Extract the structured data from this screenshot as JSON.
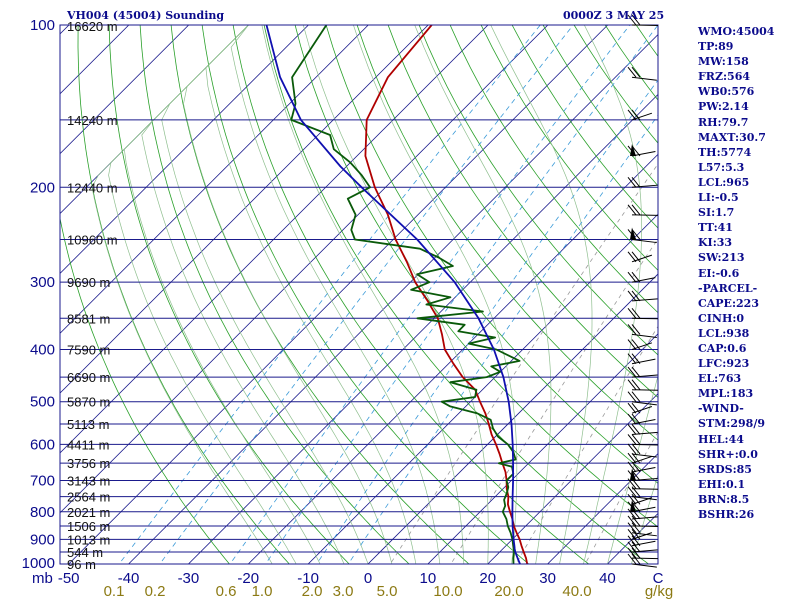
{
  "header": {
    "station": "VH004 (45004) Sounding",
    "time": "0000Z  3 MAY 25"
  },
  "indices": [
    "WMO:45004",
    "TP:89",
    "MW:158",
    "FRZ:564",
    "WB0:576",
    "PW:2.14",
    "RH:79.7",
    "MAXT:30.7",
    "TH:5774",
    "L57:5.3",
    "LCL:965",
    "LI:-0.5",
    "SI:1.7",
    "TT:41",
    "KI:33",
    "SW:213",
    "EI:-0.6",
    "-PARCEL-",
    "CAPE:223",
    "CINH:0",
    "LCL:938",
    "CAP:0.6",
    "LFC:923",
    "EL:763",
    "MPL:183",
    "-WIND-",
    "STM:298/9",
    "HEL:44",
    "SHR+:0.0",
    "SRDS:85",
    "EHI:0.1",
    "BRN:8.5",
    "BSHR:26"
  ],
  "colors": {
    "isobar": "#1a1a8c",
    "isotherm": "#1a1a8c",
    "dry_adiabat": "#2aa02a",
    "moist_adiabat": "#8fbf8f",
    "mixing_ratio": "#9a9a9a",
    "mixing_dash_blue": "#3a9ad8",
    "temperature": "#b00000",
    "dewpoint": "#0a5a0a",
    "parcel": "#1010b0",
    "label_blue": "#0b0b8c",
    "label_olive": "#8c7a14",
    "wind": "#000000"
  },
  "chart_data": {
    "type": "line",
    "title": "VH004 (45004) Sounding",
    "subtitle": "0000Z  3 MAY 25",
    "xlabel": "",
    "ylabel": "mb",
    "log_pressure_axis": true,
    "skewed_isotherms": true,
    "grid": true,
    "pressure_ticks": [
      "100",
      "200",
      "300",
      "400",
      "500",
      "600",
      "700",
      "800",
      "900",
      "1000"
    ],
    "pressure_tick_values": [
      100,
      200,
      300,
      400,
      500,
      600,
      700,
      800,
      900,
      1000
    ],
    "temperature_ticks": [
      "-50",
      "-40",
      "-30",
      "-20",
      "-10",
      "0",
      "10",
      "20",
      "30",
      "40",
      "C"
    ],
    "temperature_tick_values": [
      -50,
      -40,
      -30,
      -20,
      -10,
      0,
      10,
      20,
      30,
      40
    ],
    "mixing_ratio_ticks": [
      "0.1",
      "0.2",
      "0.6",
      "1.0",
      "2.0",
      "3.0",
      "5.0",
      "10.0",
      "20.0",
      "40.0",
      "g/kg"
    ],
    "mixing_ratio_values": [
      0.1,
      0.2,
      0.6,
      1.0,
      2.0,
      3.0,
      5.0,
      10.0,
      20.0,
      40.0
    ],
    "height_labels": [
      {
        "p": 100,
        "label": "16620 m"
      },
      {
        "p": 150,
        "label": "14240 m"
      },
      {
        "p": 200,
        "label": "12440 m"
      },
      {
        "p": 250,
        "label": "10960 m"
      },
      {
        "p": 300,
        "label": "9690 m"
      },
      {
        "p": 350,
        "label": "8581 m"
      },
      {
        "p": 400,
        "label": "7590 m"
      },
      {
        "p": 450,
        "label": "6690 m"
      },
      {
        "p": 500,
        "label": "5870 m"
      },
      {
        "p": 550,
        "label": "5113 m"
      },
      {
        "p": 600,
        "label": "4411 m"
      },
      {
        "p": 650,
        "label": "3756 m"
      },
      {
        "p": 700,
        "label": "3143 m"
      },
      {
        "p": 750,
        "label": "2564 m"
      },
      {
        "p": 800,
        "label": "2021 m"
      },
      {
        "p": 850,
        "label": "1506 m"
      },
      {
        "p": 900,
        "label": "1013 m"
      },
      {
        "p": 950,
        "label": "544 m"
      },
      {
        "p": 1000,
        "label": "96 m"
      }
    ],
    "series": [
      {
        "name": "temperature",
        "p": [
          1008,
          1000,
          975,
          950,
          925,
          900,
          875,
          850,
          825,
          800,
          775,
          750,
          725,
          700,
          675,
          650,
          625,
          600,
          575,
          550,
          525,
          500,
          475,
          450,
          425,
          400,
          375,
          350,
          325,
          300,
          275,
          250,
          225,
          200,
          175,
          150,
          125,
          100
        ],
        "t": [
          27.6,
          26.6,
          25.4,
          24.0,
          22.6,
          21.2,
          19.6,
          18.0,
          16.6,
          15.0,
          13.4,
          12.2,
          10.6,
          9.2,
          7.6,
          5.6,
          3.6,
          1.4,
          -1.0,
          -3.2,
          -5.6,
          -8.4,
          -11.2,
          -15.4,
          -19.2,
          -23.0,
          -26.0,
          -29.4,
          -34.0,
          -39.2,
          -44.0,
          -49.6,
          -55.0,
          -61.8,
          -68.6,
          -74.4,
          -78.0,
          -79.4
        ]
      },
      {
        "name": "dewpoint",
        "p": [
          1008,
          1000,
          975,
          950,
          925,
          900,
          875,
          850,
          825,
          800,
          780,
          760,
          740,
          720,
          700,
          680,
          660,
          650,
          640,
          620,
          600,
          580,
          560,
          540,
          525,
          510,
          500,
          490,
          475,
          460,
          450,
          440,
          430,
          420,
          400,
          390,
          380,
          370,
          360,
          350,
          340,
          330,
          320,
          310,
          300,
          290,
          280,
          270,
          260,
          250,
          240,
          225,
          210,
          200,
          190,
          180,
          170,
          160,
          150,
          140,
          125,
          100
        ],
        "t": [
          25.0,
          24.3,
          23.3,
          22.4,
          21.2,
          20.0,
          18.6,
          17.0,
          15.6,
          13.8,
          13.2,
          12.0,
          11.4,
          10.6,
          9.2,
          9.2,
          7.8,
          5.0,
          7.2,
          5.6,
          3.4,
          0.4,
          -1.8,
          -3.6,
          -7.0,
          -12.6,
          -14.8,
          -10.0,
          -11.0,
          -16.6,
          -11.4,
          -10.0,
          -12.4,
          -8.6,
          -14.4,
          -20.0,
          -16.6,
          -23.8,
          -23.8,
          -32.8,
          -23.0,
          -33.6,
          -30.8,
          -38.6,
          -36.8,
          -40.2,
          -35.6,
          -39.4,
          -44.0,
          -56.4,
          -58.6,
          -60.4,
          -64.4,
          -62.6,
          -66.0,
          -70.0,
          -75.0,
          -78.0,
          -87.0,
          -89.0,
          -94.0,
          -97.0
        ]
      },
      {
        "name": "parcel",
        "p": [
          1000,
          975,
          950,
          938,
          925,
          900,
          850,
          800,
          750,
          700,
          650,
          600,
          550,
          500,
          450,
          400,
          350,
          300,
          250,
          200,
          183,
          150,
          125,
          100
        ],
        "t": [
          25.4,
          24.0,
          22.6,
          22.0,
          21.4,
          20.2,
          17.8,
          15.4,
          12.9,
          10.3,
          7.4,
          4.2,
          0.6,
          -3.6,
          -8.6,
          -14.8,
          -22.6,
          -32.6,
          -46.0,
          -64.0,
          -71.0,
          -85.4,
          -96.0,
          -107.0
        ]
      }
    ],
    "wind_barbs_levels_mb": [
      1000,
      975,
      950,
      925,
      900,
      875,
      850,
      825,
      800,
      775,
      750,
      725,
      700,
      675,
      650,
      625,
      600,
      575,
      550,
      525,
      500,
      475,
      450,
      425,
      400,
      375,
      350,
      325,
      300,
      275,
      250,
      225,
      200,
      175,
      150,
      125,
      100
    ]
  }
}
